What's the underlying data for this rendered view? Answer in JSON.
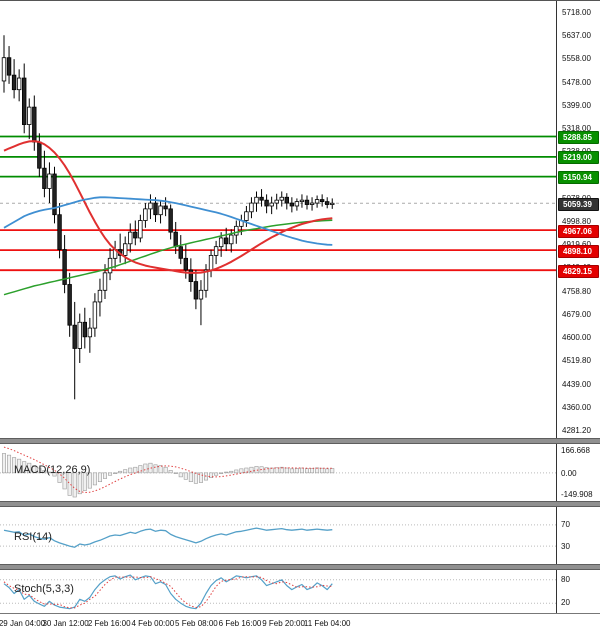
{
  "colors": {
    "green_line": "#008c00",
    "red_line": "#ee1111",
    "badge_green": "#089000",
    "badge_red": "#e30000",
    "badge_dark": "#333333",
    "ma_red": "#e03030",
    "ma_blue": "#3f8fd2",
    "ma_green": "#2ca02c",
    "bull": "#ffffff",
    "bear": "#222222",
    "rsi_line": "#54a0c8",
    "stoch_k": "#54a0c8",
    "signal_red": "#e04040"
  },
  "price_axis": {
    "labels": [
      "5718.00",
      "5637.00",
      "5558.00",
      "5478.00",
      "5399.00",
      "5318.00",
      "5238.00",
      "5158.00",
      "5078.00",
      "4998.80",
      "4919.60",
      "4840.40",
      "4758.80",
      "4679.00",
      "4600.00",
      "4519.80",
      "4439.00",
      "4360.00",
      "4281.20"
    ]
  },
  "time_axis": {
    "labels": [
      "29 Jan 04:00",
      "30 Jan 12:00",
      "2 Feb 16:00",
      "4 Feb 00:00",
      "5 Feb 08:00",
      "6 Feb 16:00",
      "9 Feb 20:00",
      "11 Feb 04:00"
    ]
  },
  "levels": [
    {
      "value": "5288.85",
      "price": 5288.85,
      "color": "green"
    },
    {
      "value": "5219.00",
      "price": 5219.0,
      "color": "green"
    },
    {
      "value": "5150.94",
      "price": 5150.94,
      "color": "green"
    },
    {
      "value": "5059.39",
      "price": 5059.39,
      "color": "dark"
    },
    {
      "value": "4967.06",
      "price": 4967.06,
      "color": "red"
    },
    {
      "value": "4898.10",
      "price": 4898.1,
      "color": "red"
    },
    {
      "value": "4829.15",
      "price": 4829.15,
      "color": "red"
    }
  ],
  "panels": {
    "macd": {
      "label": "MACD(12,26,9)",
      "axis_max": "166.668",
      "axis_mid": "0.00",
      "axis_min": "-149.908"
    },
    "rsi": {
      "label": "RSI(14)",
      "upper": "70",
      "lower": "30"
    },
    "stoch": {
      "label": "Stoch(5,3,3)",
      "upper": "80",
      "lower": "20"
    }
  },
  "chart_data": {
    "type": "candlestick",
    "title": "",
    "x_labels": [
      "29 Jan 04:00",
      "30 Jan 12:00",
      "2 Feb 16:00",
      "4 Feb 00:00",
      "5 Feb 08:00",
      "6 Feb 16:00",
      "9 Feb 20:00",
      "11 Feb 04:00"
    ],
    "price_range": [
      4252,
      5755
    ],
    "current_price": 5059.39,
    "support_resistance": {
      "green": [
        5288.85,
        5219.0,
        5150.94
      ],
      "red": [
        4967.06,
        4898.1,
        4829.15
      ]
    },
    "candles": [
      [
        5480,
        5637,
        5440,
        5560
      ],
      [
        5560,
        5600,
        5470,
        5500
      ],
      [
        5500,
        5555,
        5420,
        5450
      ],
      [
        5450,
        5520,
        5410,
        5490
      ],
      [
        5490,
        5540,
        5300,
        5330
      ],
      [
        5330,
        5420,
        5280,
        5390
      ],
      [
        5390,
        5430,
        5240,
        5270
      ],
      [
        5270,
        5300,
        5150,
        5180
      ],
      [
        5180,
        5240,
        5080,
        5110
      ],
      [
        5110,
        5200,
        5060,
        5160
      ],
      [
        5160,
        5185,
        4990,
        5020
      ],
      [
        5020,
        5060,
        4870,
        4900
      ],
      [
        4900,
        4950,
        4750,
        4780
      ],
      [
        4780,
        4820,
        4600,
        4640
      ],
      [
        4640,
        4720,
        4385,
        4560
      ],
      [
        4560,
        4680,
        4510,
        4650
      ],
      [
        4650,
        4700,
        4560,
        4600
      ],
      [
        4600,
        4665,
        4545,
        4630
      ],
      [
        4630,
        4750,
        4600,
        4720
      ],
      [
        4720,
        4800,
        4670,
        4760
      ],
      [
        4760,
        4850,
        4730,
        4820
      ],
      [
        4820,
        4905,
        4795,
        4870
      ],
      [
        4870,
        4930,
        4835,
        4900
      ],
      [
        4900,
        4955,
        4855,
        4880
      ],
      [
        4880,
        4945,
        4850,
        4920
      ],
      [
        4920,
        4990,
        4890,
        4960
      ],
      [
        4960,
        5000,
        4915,
        4940
      ],
      [
        4940,
        5020,
        4925,
        5000
      ],
      [
        5000,
        5060,
        4975,
        5040
      ],
      [
        5040,
        5090,
        5005,
        5060
      ],
      [
        5060,
        5080,
        4995,
        5020
      ],
      [
        5020,
        5070,
        4990,
        5050
      ],
      [
        5050,
        5080,
        5015,
        5040
      ],
      [
        5040,
        5055,
        4935,
        4960
      ],
      [
        4960,
        4995,
        4885,
        4910
      ],
      [
        4910,
        4950,
        4850,
        4870
      ],
      [
        4870,
        4920,
        4800,
        4830
      ],
      [
        4830,
        4870,
        4755,
        4790
      ],
      [
        4790,
        4830,
        4695,
        4730
      ],
      [
        4730,
        4795,
        4640,
        4760
      ],
      [
        4760,
        4850,
        4735,
        4830
      ],
      [
        4830,
        4900,
        4805,
        4880
      ],
      [
        4880,
        4930,
        4850,
        4910
      ],
      [
        4910,
        4960,
        4875,
        4940
      ],
      [
        4940,
        4975,
        4895,
        4920
      ],
      [
        4920,
        4970,
        4890,
        4950
      ],
      [
        4950,
        5000,
        4920,
        4980
      ],
      [
        4980,
        5020,
        4950,
        5000
      ],
      [
        5000,
        5050,
        4978,
        5030
      ],
      [
        5030,
        5080,
        5008,
        5060
      ],
      [
        5060,
        5100,
        5030,
        5080
      ],
      [
        5080,
        5108,
        5048,
        5070
      ],
      [
        5070,
        5090,
        5025,
        5050
      ],
      [
        5050,
        5082,
        5022,
        5060
      ],
      [
        5060,
        5092,
        5038,
        5070
      ],
      [
        5070,
        5100,
        5048,
        5080
      ],
      [
        5080,
        5094,
        5038,
        5060
      ],
      [
        5060,
        5080,
        5028,
        5050
      ],
      [
        5050,
        5076,
        5034,
        5065
      ],
      [
        5065,
        5090,
        5044,
        5070
      ],
      [
        5070,
        5086,
        5038,
        5055
      ],
      [
        5055,
        5080,
        5034,
        5060
      ],
      [
        5060,
        5086,
        5044,
        5072
      ],
      [
        5072,
        5090,
        5048,
        5065
      ],
      [
        5065,
        5080,
        5042,
        5055
      ],
      [
        5055,
        5076,
        5040,
        5059.39
      ]
    ],
    "ma_red": [
      5240,
      5248,
      5255,
      5262,
      5268,
      5272,
      5273,
      5270,
      5262,
      5250,
      5234,
      5214,
      5190,
      5162,
      5130,
      5096,
      5062,
      5028,
      4996,
      4966,
      4940,
      4918,
      4900,
      4886,
      4874,
      4864,
      4856,
      4850,
      4845,
      4841,
      4838,
      4835,
      4832,
      4829,
      4826,
      4823,
      4821,
      4820,
      4820,
      4821,
      4824,
      4828,
      4834,
      4841,
      4849,
      4858,
      4868,
      4878,
      4889,
      4900,
      4911,
      4922,
      4932,
      4942,
      4951,
      4960,
      4968,
      4975,
      4982,
      4988,
      4993,
      4997,
      5001,
      5004,
      5006,
      5008
    ],
    "ma_blue": [
      4975,
      4985,
      4995,
      5005,
      5015,
      5022,
      5028,
      5033,
      5037,
      5040,
      5043,
      5048,
      5053,
      5058,
      5063,
      5068,
      5072,
      5075,
      5078,
      5080,
      5080,
      5079,
      5078,
      5077,
      5076,
      5075,
      5074,
      5073,
      5072,
      5071,
      5070,
      5068,
      5066,
      5063,
      5060,
      5056,
      5052,
      5048,
      5044,
      5040,
      5036,
      5032,
      5028,
      5023,
      5018,
      5012,
      5006,
      5000,
      4994,
      4988,
      4982,
      4976,
      4970,
      4964,
      4958,
      4952,
      4946,
      4941,
      4936,
      4931,
      4927,
      4924,
      4921,
      4919,
      4917,
      4916
    ],
    "ma_green": [
      4745,
      4750,
      4755,
      4760,
      4765,
      4770,
      4775,
      4779,
      4783,
      4787,
      4791,
      4795,
      4799,
      4803,
      4807,
      4811,
      4815,
      4819,
      4823,
      4827,
      4832,
      4837,
      4842,
      4848,
      4854,
      4860,
      4866,
      4872,
      4878,
      4884,
      4890,
      4896,
      4901,
      4906,
      4911,
      4915,
      4919,
      4923,
      4927,
      4931,
      4935,
      4939,
      4943,
      4947,
      4951,
      4955,
      4959,
      4963,
      4966,
      4969,
      4972,
      4975,
      4978,
      4981,
      4984,
      4986,
      4988,
      4990,
      4992,
      4994,
      4996,
      4997,
      4998,
      4999,
      5000,
      5001
    ],
    "macd_range": [
      166.668,
      -149.908
    ],
    "macd_hist": [
      120,
      110,
      95,
      85,
      70,
      60,
      45,
      30,
      15,
      5,
      -20,
      -60,
      -100,
      -140,
      -150,
      -130,
      -110,
      -95,
      -75,
      -55,
      -35,
      -15,
      0,
      10,
      20,
      30,
      35,
      45,
      55,
      60,
      50,
      45,
      35,
      15,
      -5,
      -25,
      -40,
      -55,
      -65,
      -60,
      -45,
      -30,
      -15,
      -5,
      5,
      10,
      18,
      25,
      30,
      35,
      40,
      38,
      32,
      30,
      32,
      35,
      30,
      25,
      27,
      30,
      26,
      27,
      31,
      29,
      25,
      27
    ],
    "macd_signal": [
      160,
      150,
      138,
      124,
      110,
      96,
      82,
      66,
      50,
      34,
      16,
      -6,
      -34,
      -66,
      -96,
      -115,
      -122,
      -120,
      -112,
      -100,
      -86,
      -70,
      -54,
      -38,
      -24,
      -11,
      0,
      10,
      20,
      29,
      36,
      41,
      43,
      42,
      37,
      29,
      19,
      8,
      -3,
      -13,
      -20,
      -24,
      -25,
      -23,
      -19,
      -14,
      -8,
      -2,
      4,
      10,
      16,
      21,
      25,
      28,
      30,
      31,
      31,
      31,
      30,
      30,
      29,
      29,
      29,
      29,
      29,
      28
    ],
    "rsi_levels": [
      70,
      30
    ],
    "rsi": [
      60,
      58,
      56,
      57,
      50,
      53,
      48,
      45,
      43,
      46,
      40,
      36,
      33,
      30,
      28,
      34,
      32,
      34,
      38,
      41,
      45,
      49,
      51,
      50,
      53,
      56,
      54,
      58,
      61,
      62,
      58,
      60,
      59,
      52,
      48,
      45,
      42,
      39,
      36,
      39,
      44,
      48,
      51,
      53,
      51,
      54,
      57,
      58,
      60,
      62,
      64,
      62,
      60,
      61,
      62,
      63,
      61,
      60,
      61,
      62,
      60,
      61,
      62,
      61,
      60,
      61
    ],
    "stoch_levels": [
      80,
      20
    ],
    "stoch_k": [
      70,
      60,
      45,
      55,
      30,
      40,
      25,
      18,
      12,
      25,
      15,
      10,
      8,
      6,
      10,
      30,
      25,
      35,
      55,
      70,
      80,
      88,
      90,
      82,
      88,
      92,
      80,
      85,
      90,
      88,
      70,
      75,
      68,
      45,
      30,
      20,
      12,
      8,
      6,
      20,
      45,
      65,
      78,
      85,
      75,
      82,
      90,
      88,
      85,
      88,
      90,
      80,
      65,
      70,
      75,
      80,
      65,
      55,
      62,
      68,
      55,
      60,
      72,
      65,
      55,
      70
    ],
    "stoch_d": [
      75,
      65,
      58,
      53,
      43,
      42,
      32,
      24,
      18,
      18,
      17,
      17,
      11,
      8,
      8,
      15,
      20,
      30,
      38,
      53,
      68,
      79,
      87,
      87,
      87,
      87,
      87,
      86,
      85,
      88,
      83,
      78,
      71,
      63,
      48,
      32,
      21,
      13,
      9,
      11,
      24,
      43,
      63,
      76,
      79,
      81,
      82,
      87,
      88,
      87,
      88,
      86,
      78,
      72,
      70,
      75,
      73,
      67,
      61,
      62,
      62,
      61,
      62,
      66,
      64,
      63
    ]
  }
}
